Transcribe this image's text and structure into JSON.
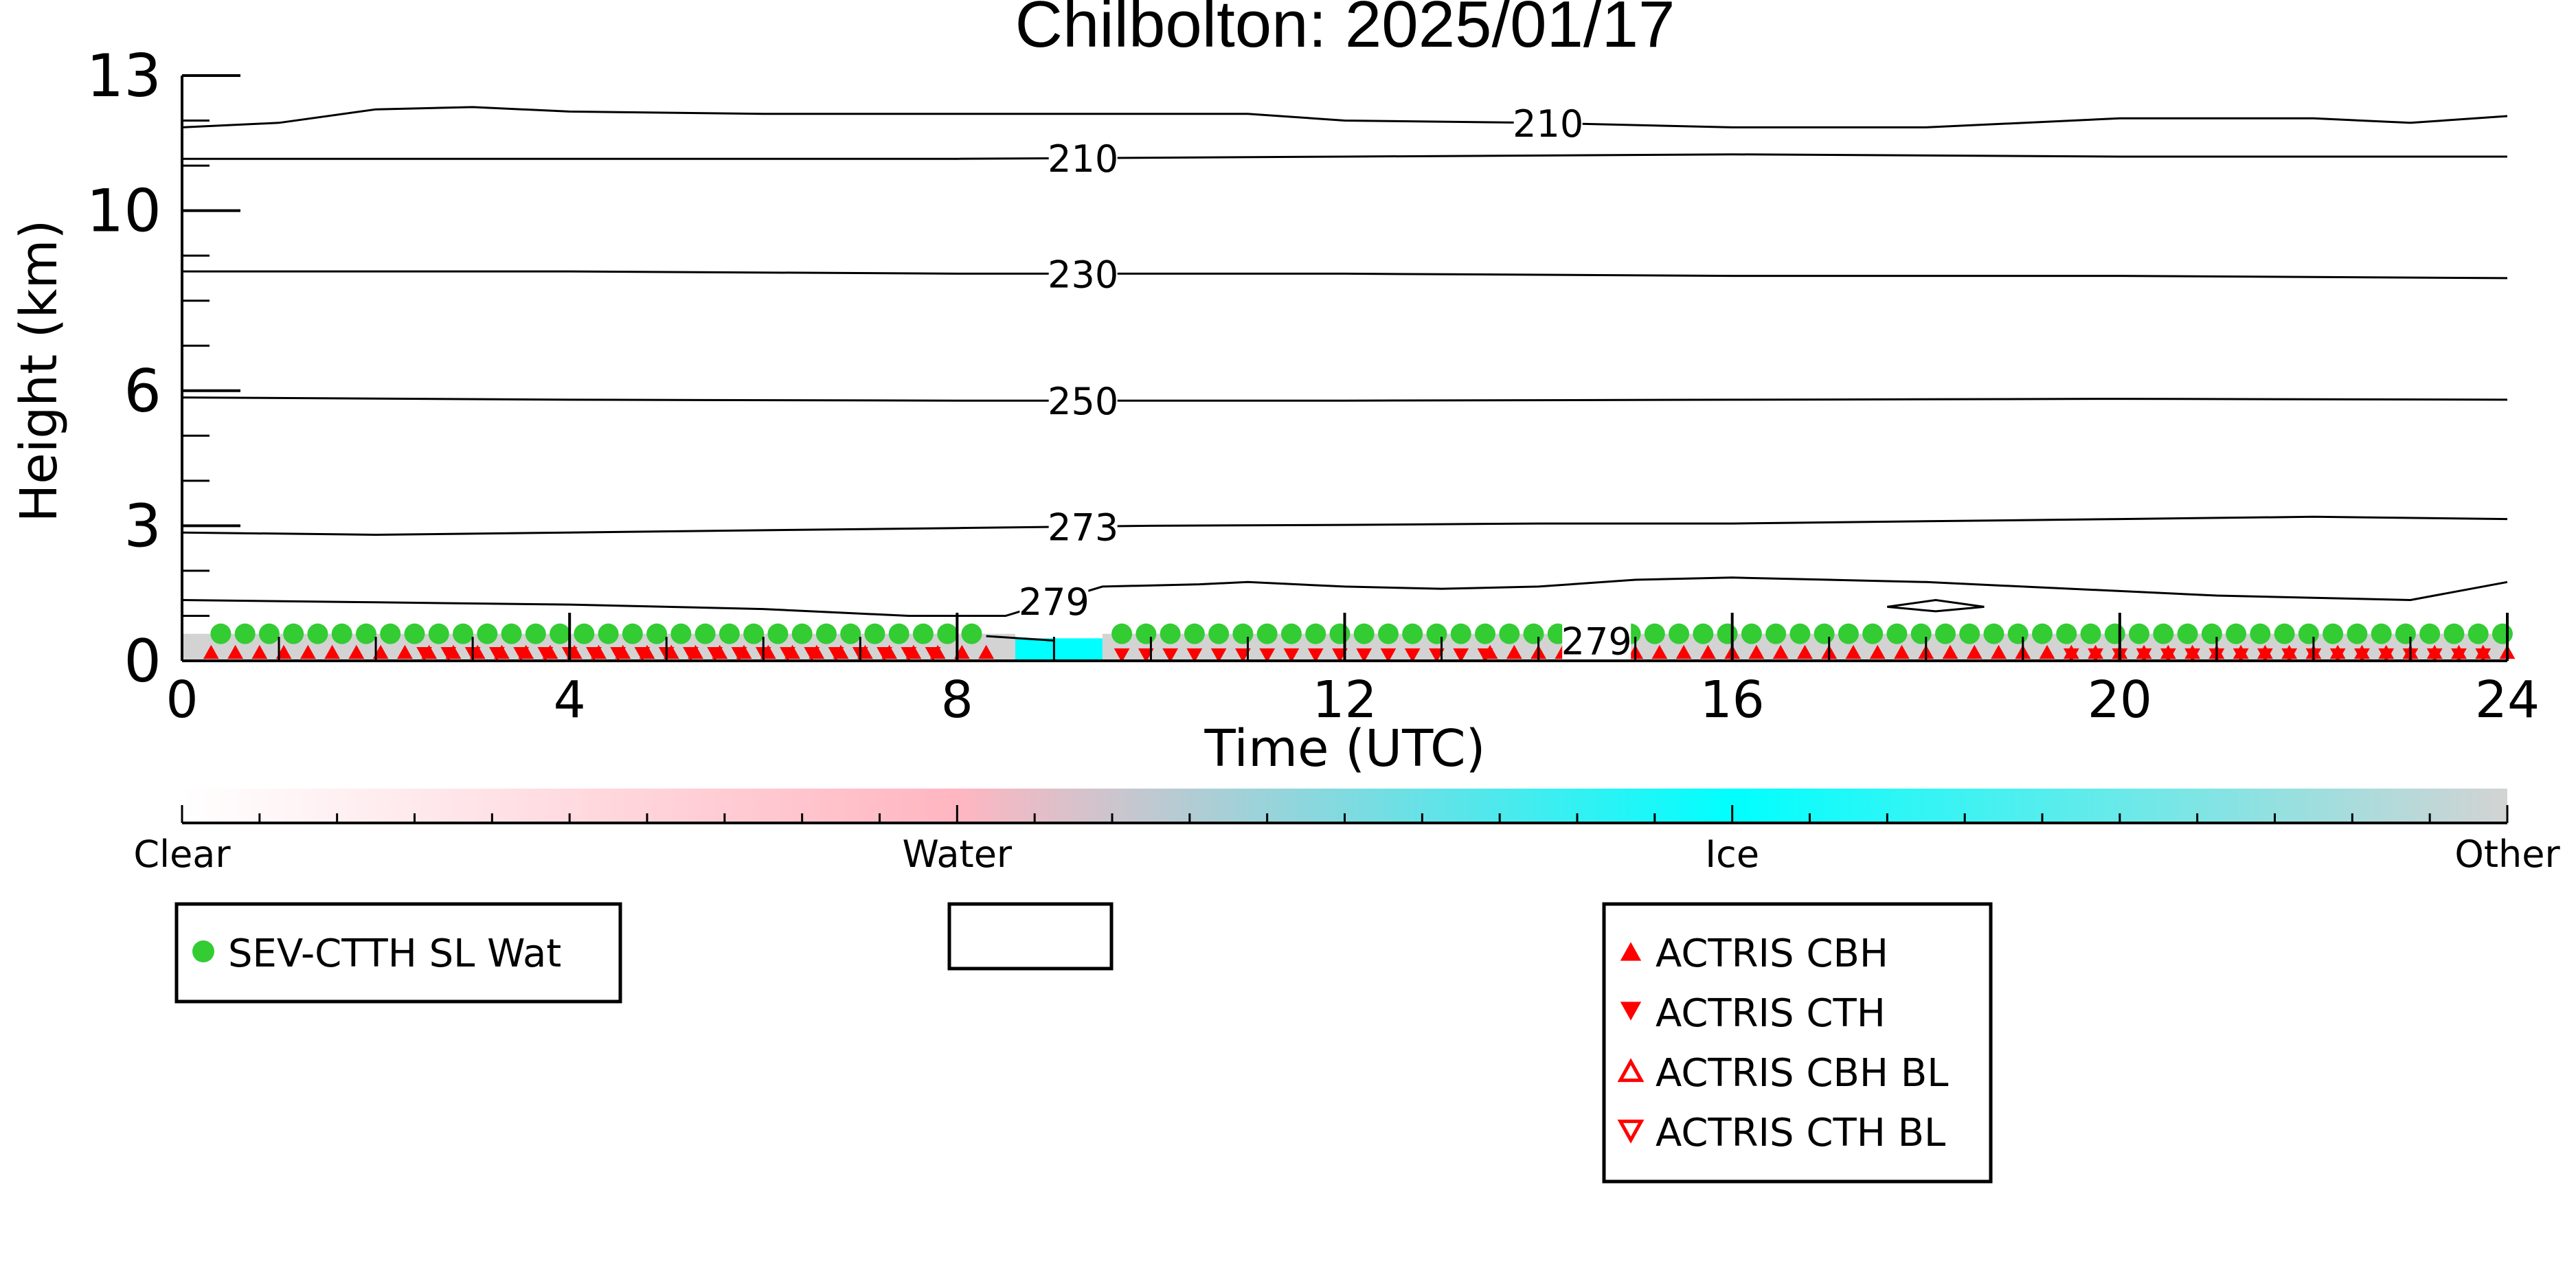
{
  "chart_data": {
    "type": "line",
    "title": "Chilbolton: 2025/01/17",
    "xlabel": "Time (UTC)",
    "ylabel": "Height (km)",
    "xlim": [
      0,
      24
    ],
    "ylim": [
      0,
      13
    ],
    "x_ticks": [
      0,
      4,
      8,
      12,
      16,
      20,
      24
    ],
    "x_tick_labels": [
      "0",
      "4",
      "8",
      "12",
      "16",
      "20",
      "24"
    ],
    "y_ticks": [
      0,
      3,
      6,
      10,
      13
    ],
    "y_tick_labels": [
      "0",
      "3",
      "6",
      "10",
      "13"
    ],
    "contours": [
      {
        "label": "210",
        "label_x": 14.1,
        "x": [
          0,
          1,
          2,
          3,
          4,
          6,
          8,
          10,
          11,
          12,
          14,
          16,
          18,
          20,
          22,
          23,
          24
        ],
        "y": [
          11.85,
          11.95,
          12.25,
          12.3,
          12.2,
          12.15,
          12.15,
          12.15,
          12.15,
          12.0,
          11.95,
          11.85,
          11.85,
          12.05,
          12.05,
          11.95,
          12.1
        ]
      },
      {
        "label": "210",
        "label_x": 9.3,
        "x": [
          0,
          4,
          8,
          12,
          16,
          20,
          24
        ],
        "y": [
          11.15,
          11.15,
          11.15,
          11.2,
          11.25,
          11.2,
          11.2
        ]
      },
      {
        "label": "230",
        "label_x": 9.3,
        "x": [
          0,
          4,
          8,
          12,
          16,
          20,
          24
        ],
        "y": [
          8.65,
          8.65,
          8.6,
          8.6,
          8.55,
          8.55,
          8.5
        ]
      },
      {
        "label": "250",
        "label_x": 9.3,
        "x": [
          0,
          4,
          8,
          12,
          16,
          20,
          24
        ],
        "y": [
          5.85,
          5.8,
          5.78,
          5.78,
          5.8,
          5.82,
          5.8
        ]
      },
      {
        "label": "273",
        "label_x": 9.3,
        "x": [
          0,
          2,
          4,
          6,
          8,
          10,
          12,
          14,
          16,
          18,
          20,
          22,
          24
        ],
        "y": [
          2.85,
          2.8,
          2.85,
          2.9,
          2.95,
          3.0,
          3.02,
          3.05,
          3.05,
          3.1,
          3.15,
          3.2,
          3.15
        ]
      },
      {
        "label": "279",
        "label_x": 9.0,
        "x": [
          0,
          2,
          4,
          6,
          7.5,
          8.5,
          9.5,
          10.5,
          11,
          12,
          13,
          14,
          15,
          16,
          17,
          18,
          19,
          20,
          21,
          22,
          23,
          24
        ],
        "y": [
          1.35,
          1.3,
          1.25,
          1.15,
          1.0,
          1.0,
          1.65,
          1.7,
          1.75,
          1.65,
          1.6,
          1.65,
          1.8,
          1.85,
          1.8,
          1.75,
          1.65,
          1.55,
          1.45,
          1.4,
          1.35,
          1.75
        ]
      },
      {
        "label": "279",
        "label_x": 14.6,
        "x": [
          8.3,
          9.0
        ],
        "y": [
          0.55,
          0.45
        ]
      }
    ],
    "loop_contour": {
      "x": [
        17.6,
        18.1,
        18.6,
        18.1,
        17.6
      ],
      "y": [
        1.2,
        1.35,
        1.2,
        1.1,
        1.2
      ]
    },
    "classification": {
      "categories": [
        "Clear",
        "Water",
        "Ice",
        "Other"
      ],
      "colors": [
        "#ffffff",
        "#ffb6c1",
        "#00ffff",
        "#d3d3d3"
      ],
      "segments": [
        {
          "x": [
            0,
            8.6
          ],
          "category": "Other",
          "top_km": 0.6
        },
        {
          "x": [
            8.6,
            9.5
          ],
          "category": "Ice",
          "top_km": 0.5
        },
        {
          "x": [
            9.5,
            24
          ],
          "category": "Other",
          "top_km": 0.6
        }
      ]
    },
    "sev_ctth_sl_wat": {
      "marker": "circle",
      "color": "#33cc33",
      "segments": [
        {
          "x_start": 0.4,
          "x_end": 8.3,
          "step": 0.25,
          "y": 0.6
        },
        {
          "x_start": 9.7,
          "x_end": 24.0,
          "step": 0.25,
          "y": 0.6
        }
      ]
    },
    "actris_cbh": {
      "marker": "triangle-up",
      "color": "#ff0000",
      "segments": [
        {
          "x_start": 0.3,
          "x_end": 8.4,
          "step": 0.25,
          "y": 0.2
        },
        {
          "x_start": 13.5,
          "x_end": 24.0,
          "step": 0.25,
          "y": 0.2
        }
      ]
    },
    "actris_cth": {
      "marker": "triangle-down",
      "color": "#ff0000",
      "segments": [
        {
          "x_start": 2.5,
          "x_end": 7.8,
          "step": 0.25,
          "y": 0.15
        },
        {
          "x_start": 9.7,
          "x_end": 13.5,
          "step": 0.25,
          "y": 0.12
        },
        {
          "x_start": 19.5,
          "x_end": 23.8,
          "step": 0.25,
          "y": 0.12
        }
      ]
    },
    "colorbar": {
      "labels": [
        "Clear",
        "Water",
        "Ice",
        "Other"
      ]
    },
    "legends": [
      {
        "entries": [
          {
            "label": "SEV-CTTH SL Wat",
            "marker": "circle",
            "color": "#33cc33"
          }
        ]
      },
      {
        "entries": []
      },
      {
        "entries": [
          {
            "label": "ACTRIS CBH",
            "marker": "triangle-up",
            "color": "#ff0000"
          },
          {
            "label": "ACTRIS CTH",
            "marker": "triangle-down",
            "color": "#ff0000"
          },
          {
            "label": "ACTRIS CBH BL",
            "marker": "triangle-up-open",
            "color": "#ff0000"
          },
          {
            "label": "ACTRIS CTH BL",
            "marker": "triangle-down-open",
            "color": "#ff0000"
          }
        ]
      }
    ]
  }
}
